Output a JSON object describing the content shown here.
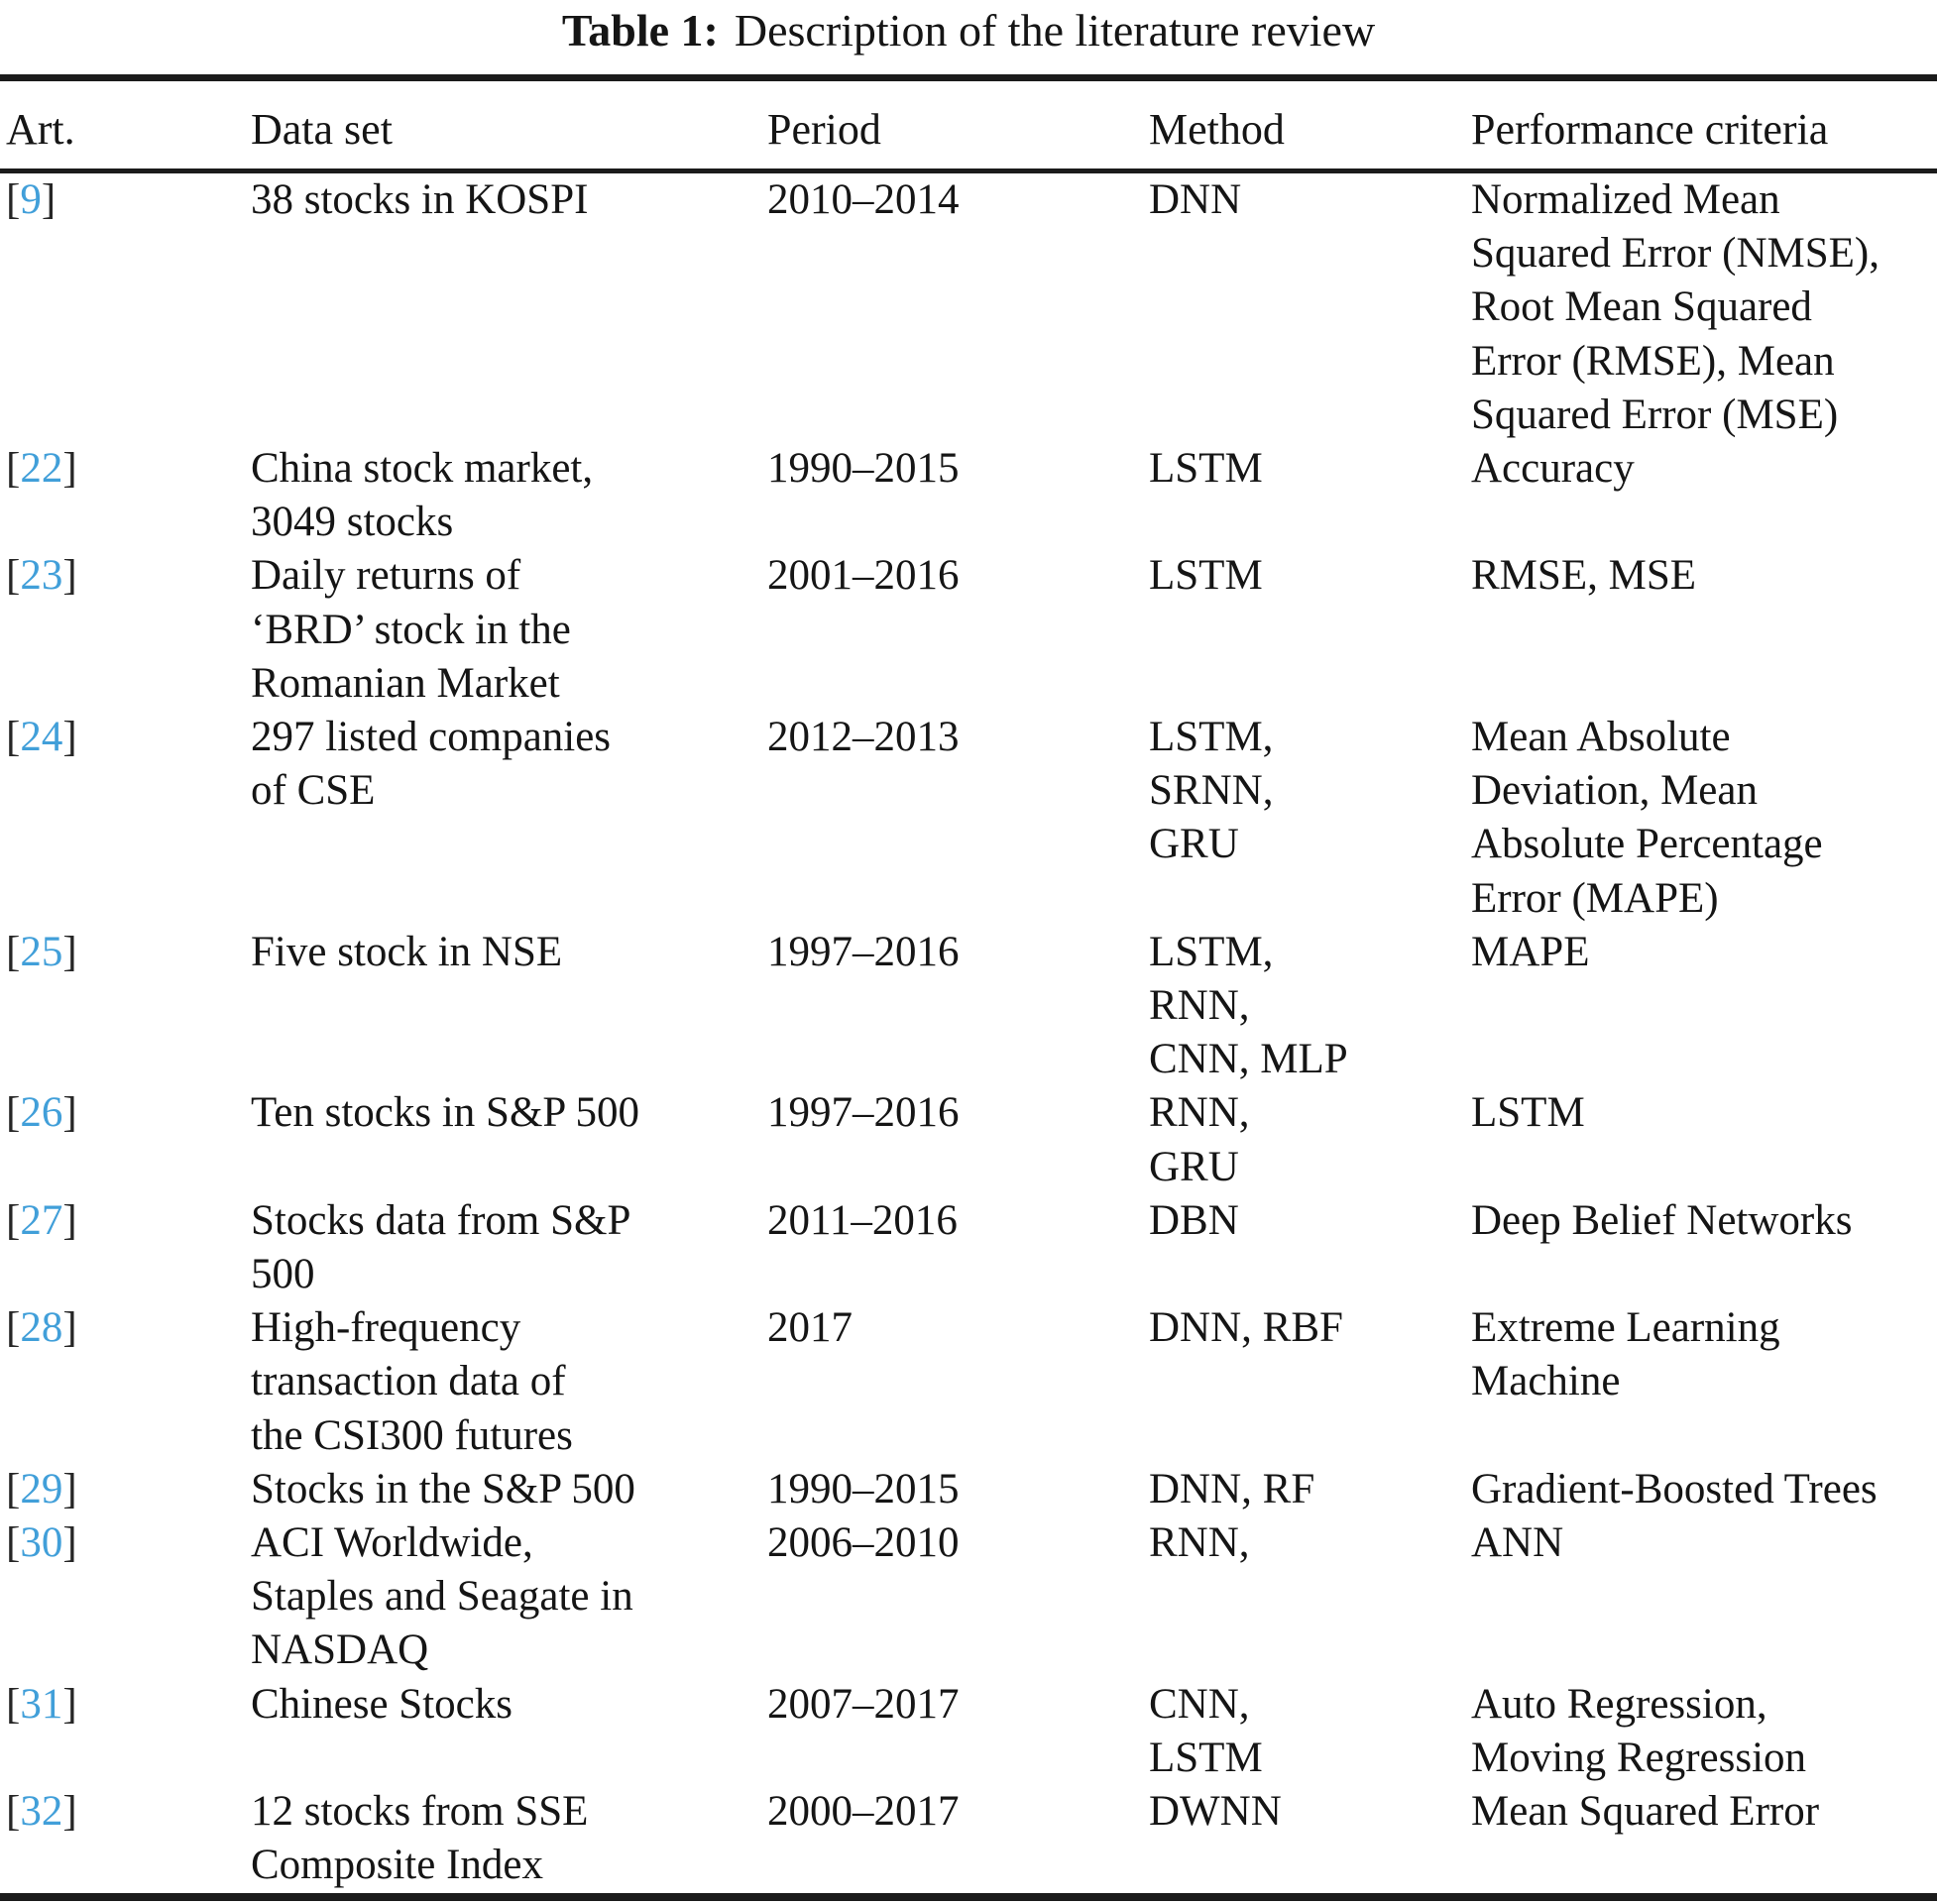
{
  "title": {
    "label": "Table 1:",
    "text": "Description of the literature review"
  },
  "columns": [
    "Art.",
    "Data set",
    "Period",
    "Method",
    "Performance criteria"
  ],
  "symbols": {
    "open_bracket": "[",
    "close_bracket": "]"
  },
  "colors": {
    "citation_link": "#419fd9",
    "text": "#151515",
    "rule": "#1b1b1b"
  },
  "rows": [
    {
      "art": "9",
      "dataset": "38 stocks in KOSPI",
      "period": "2010–2014",
      "method": "DNN",
      "criteria": "Normalized Mean\nSquared Error (NMSE),\nRoot Mean Squared\nError (RMSE), Mean\nSquared Error (MSE)"
    },
    {
      "art": "22",
      "dataset": "China stock market,\n3049 stocks",
      "period": "1990–2015",
      "method": "LSTM",
      "criteria": "Accuracy"
    },
    {
      "art": "23",
      "dataset": "Daily returns of\n‘BRD’ stock in the\nRomanian Market",
      "period": "2001–2016",
      "method": "LSTM",
      "criteria": "RMSE, MSE"
    },
    {
      "art": "24",
      "dataset": "297 listed companies\nof CSE",
      "period": "2012–2013",
      "method": "LSTM,\nSRNN,\nGRU",
      "criteria": "Mean Absolute\nDeviation, Mean\nAbsolute Percentage\nError (MAPE)"
    },
    {
      "art": "25",
      "dataset": "Five stock in NSE",
      "period": "1997–2016",
      "method": "LSTM,\nRNN,\nCNN, MLP",
      "criteria": "MAPE"
    },
    {
      "art": "26",
      "dataset": "Ten stocks in S&P 500",
      "period": "1997–2016",
      "method": "RNN,\nGRU",
      "criteria": "LSTM"
    },
    {
      "art": "27",
      "dataset": "Stocks data from S&P\n500",
      "period": "2011–2016",
      "method": "DBN",
      "criteria": "Deep Belief Networks"
    },
    {
      "art": "28",
      "dataset": "High-frequency\ntransaction data of\nthe CSI300 futures",
      "period": "2017",
      "method": "DNN, RBF",
      "criteria": "Extreme Learning\nMachine"
    },
    {
      "art": "29",
      "dataset": "Stocks in the S&P 500",
      "period": "1990–2015",
      "method": "DNN, RF",
      "criteria": "Gradient-Boosted Trees"
    },
    {
      "art": "30",
      "dataset": "ACI Worldwide,\nStaples and Seagate in\nNASDAQ",
      "period": "2006–2010",
      "method": "RNN,",
      "criteria": "ANN"
    },
    {
      "art": "31",
      "dataset": "Chinese Stocks",
      "period": "2007–2017",
      "method": "CNN,\nLSTM",
      "criteria": "Auto Regression,\nMoving Regression"
    },
    {
      "art": "32",
      "dataset": "12 stocks from SSE\nComposite Index",
      "period": "2000–2017",
      "method": "DWNN",
      "criteria": "Mean Squared Error"
    }
  ]
}
